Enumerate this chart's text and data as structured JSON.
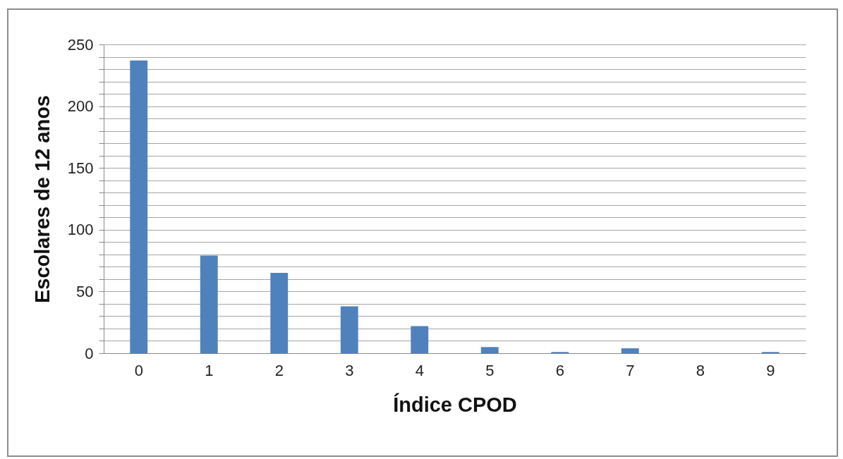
{
  "chart_data": {
    "type": "bar",
    "xlabel": "Índice CPOD",
    "ylabel": "Escolares de 12 anos",
    "categories": [
      "0",
      "1",
      "2",
      "3",
      "4",
      "5",
      "6",
      "7",
      "8",
      "9"
    ],
    "values": [
      237,
      79,
      65,
      38,
      22,
      5,
      1,
      4,
      0,
      1
    ],
    "color": "#4f81bd",
    "ylim": [
      0,
      250
    ],
    "yticks": [
      0,
      {
        "value": 10,
        "label": null
      },
      {
        "value": 20,
        "label": null
      },
      {
        "value": 30,
        "label": null
      },
      {
        "value": 40,
        "label": null
      },
      50,
      {
        "value": 60,
        "label": null
      },
      {
        "value": 70,
        "label": null
      },
      {
        "value": 80,
        "label": null
      },
      {
        "value": 90,
        "label": null
      },
      100,
      {
        "value": 110,
        "label": null
      },
      {
        "value": 120,
        "label": null
      },
      {
        "value": 130,
        "label": null
      },
      {
        "value": 140,
        "label": null
      },
      150,
      {
        "value": 160,
        "label": null
      },
      {
        "value": 170,
        "label": null
      },
      {
        "value": 180,
        "label": null
      },
      {
        "value": 190,
        "label": null
      },
      200,
      {
        "value": 210,
        "label": null
      },
      {
        "value": 220,
        "label": null
      },
      {
        "value": 230,
        "label": null
      },
      {
        "value": 240,
        "label": null
      },
      250
    ],
    "grid": "y"
  }
}
